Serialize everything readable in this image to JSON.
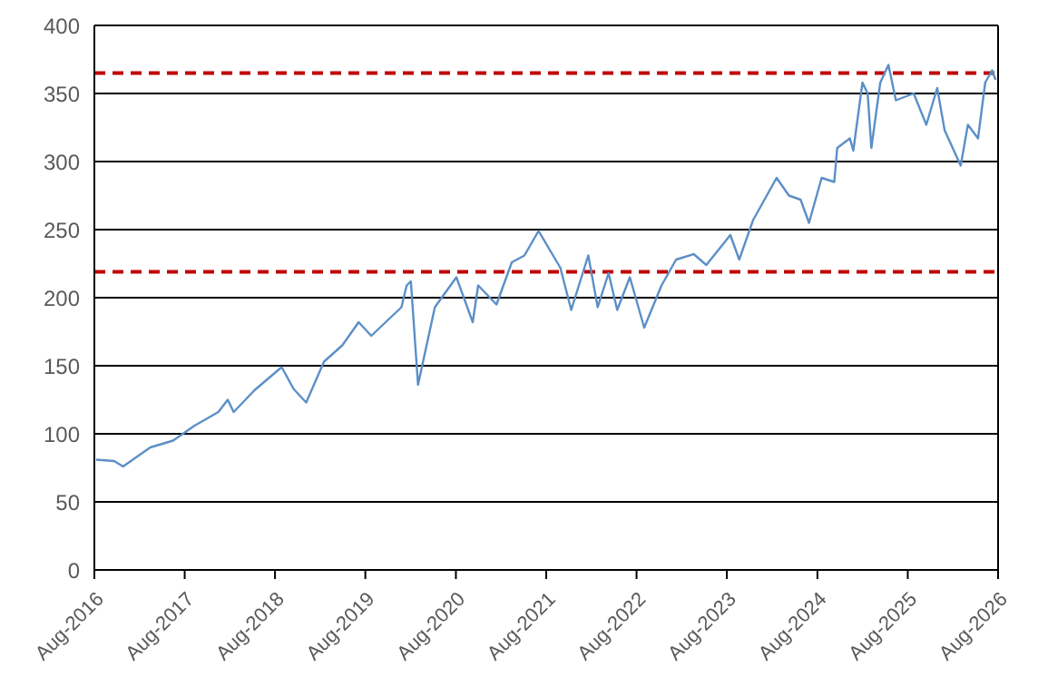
{
  "chart_data": {
    "type": "line",
    "x": [
      "2016-08-08",
      "2016-10-20",
      "2016-11-25",
      "2017-03-15",
      "2017-06-15",
      "2017-09-10",
      "2017-12-15",
      "2018-01-22",
      "2018-02-15",
      "2018-05-10",
      "2018-08-28",
      "2018-10-15",
      "2018-12-05",
      "2019-02-15",
      "2019-04-30",
      "2019-07-05",
      "2019-08-25",
      "2019-12-25",
      "2020-01-15",
      "2020-02-01",
      "2020-03-01",
      "2020-05-08",
      "2020-08-03",
      "2020-10-08",
      "2020-10-30",
      "2021-01-12",
      "2021-03-15",
      "2021-05-05",
      "2021-07-01",
      "2021-09-27",
      "2021-11-10",
      "2022-01-18",
      "2022-02-25",
      "2022-04-10",
      "2022-05-15",
      "2022-07-05",
      "2022-09-01",
      "2022-11-10",
      "2023-01-08",
      "2023-03-20",
      "2023-05-10",
      "2023-08-15",
      "2023-09-20",
      "2023-11-15",
      "2024-02-18",
      "2024-04-08",
      "2024-05-25",
      "2024-06-28",
      "2024-08-18",
      "2024-10-08",
      "2024-10-20",
      "2024-12-10",
      "2024-12-24",
      "2025-01-30",
      "2025-02-20",
      "2025-03-07",
      "2025-04-12",
      "2025-05-15",
      "2025-06-14",
      "2025-08-25",
      "2025-10-15",
      "2025-11-28",
      "2025-12-28",
      "2026-03-03",
      "2026-04-01",
      "2026-05-12",
      "2026-06-10",
      "2026-07-08",
      "2026-07-22"
    ],
    "series": [
      {
        "color": "#5b8fc7",
        "values": [
          81,
          80,
          76,
          90,
          95,
          106,
          116,
          125,
          116,
          132,
          149,
          133,
          123,
          153,
          165,
          182,
          172,
          193,
          209,
          212,
          136,
          193,
          215,
          182,
          209,
          195,
          226,
          231,
          249,
          222,
          191,
          231,
          193,
          218,
          191,
          215,
          178,
          209,
          228,
          232,
          224,
          246,
          228,
          257,
          288,
          275,
          272,
          255,
          288,
          285,
          310,
          317,
          308,
          358,
          350,
          310,
          358,
          371,
          345,
          350,
          327,
          354,
          323,
          297,
          327,
          317,
          358,
          367,
          360
        ]
      }
    ],
    "xlim": [
      "2016-08-01",
      "2026-08-01"
    ],
    "xticks": [
      {
        "value": "2016-08-01",
        "label": "Aug-2016"
      },
      {
        "value": "2017-08-01",
        "label": "Aug-2017"
      },
      {
        "value": "2018-08-01",
        "label": "Aug-2018"
      },
      {
        "value": "2019-08-01",
        "label": "Aug-2019"
      },
      {
        "value": "2020-08-01",
        "label": "Aug-2020"
      },
      {
        "value": "2021-08-01",
        "label": "Aug-2021"
      },
      {
        "value": "2022-08-01",
        "label": "Aug-2022"
      },
      {
        "value": "2023-08-01",
        "label": "Aug-2023"
      },
      {
        "value": "2024-08-01",
        "label": "Aug-2024"
      },
      {
        "value": "2025-08-01",
        "label": "Aug-2025"
      },
      {
        "value": "2026-08-01",
        "label": "Aug-2026"
      }
    ],
    "ylim": [
      0,
      400
    ],
    "yticks": [
      0,
      50,
      100,
      150,
      200,
      250,
      300,
      350,
      400
    ],
    "grid": "y",
    "marker": "none",
    "line_style": "solid",
    "legend": false,
    "ref_lines": [
      {
        "axis": "y",
        "value": 365,
        "color": "#c00000",
        "line_style": "dashed"
      },
      {
        "axis": "y",
        "value": 219,
        "color": "#c00000",
        "line_style": "dashed"
      }
    ]
  }
}
